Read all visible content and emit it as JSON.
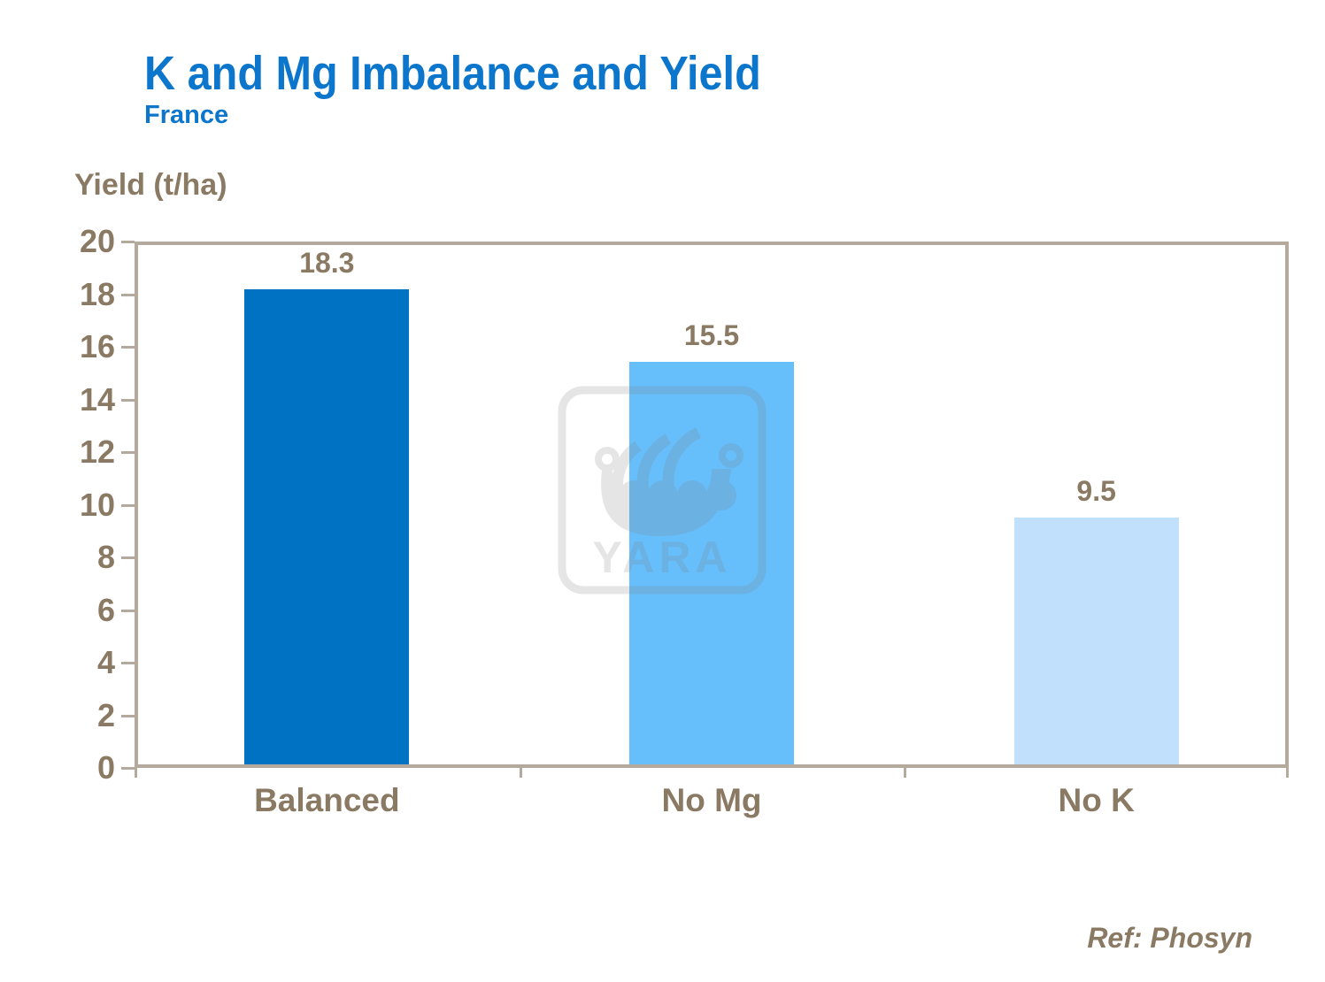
{
  "header": {
    "title": "K and Mg Imbalance and Yield",
    "subtitle": "France"
  },
  "axis_title": "Yield (t/ha)",
  "footer": {
    "reference": "Ref: Phosyn"
  },
  "watermark": {
    "name": "yara-viking-ship-logo",
    "text": "YARA"
  },
  "colors": {
    "title_blue": "#0b76cc",
    "text_brown": "#8b7a63",
    "axis_line": "#b3a99c",
    "bar_balanced": "#0072c3",
    "bar_no_mg": "#66befb",
    "bar_no_k": "#c0e0fb",
    "watermark_gray": "#808080"
  },
  "chart_data": {
    "type": "bar",
    "title": "K and Mg Imbalance and Yield",
    "subtitle": "France",
    "categories": [
      "Balanced",
      "No Mg",
      "No K"
    ],
    "values": [
      18.3,
      15.5,
      9.5
    ],
    "data_labels": [
      "18.3",
      "15.5",
      "9.5"
    ],
    "bar_colors": [
      "#0072c3",
      "#66befb",
      "#c0e0fb"
    ],
    "xlabel": "",
    "ylabel": "Yield (t/ha)",
    "ylim": [
      0,
      20
    ],
    "ytick_step": 2,
    "yticks": [
      0,
      2,
      4,
      6,
      8,
      10,
      12,
      14,
      16,
      18,
      20
    ],
    "grid": false,
    "legend": false,
    "annotations": [
      "Ref: Phosyn"
    ]
  }
}
